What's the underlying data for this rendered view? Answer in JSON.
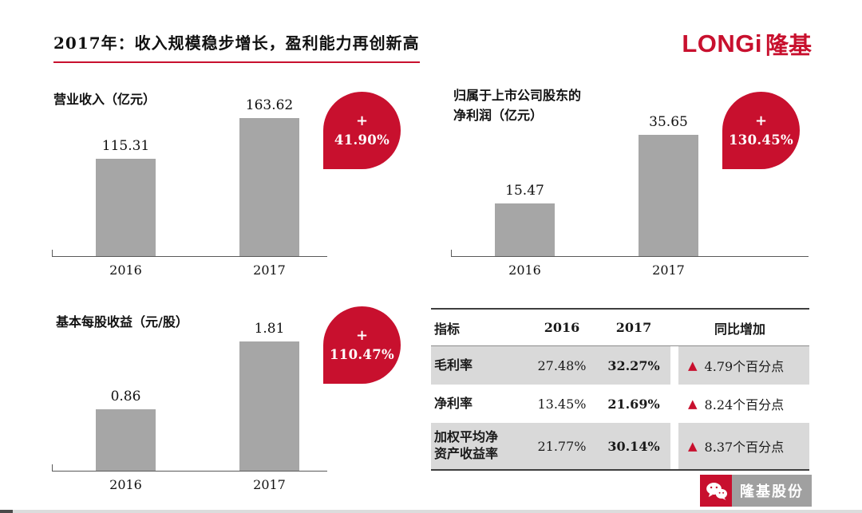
{
  "header": {
    "title": "2017年：收入规模稳步增长，盈利能力再创新高",
    "logo_latin": "LONGi",
    "logo_cn": "隆基"
  },
  "colors": {
    "accent_red": "#c8102e",
    "bar_gray": "#a6a6a6",
    "row_shade": "#d9d9d9"
  },
  "chart_data": [
    {
      "type": "bar",
      "title": "营业收入（亿元）",
      "categories": [
        "2016",
        "2017"
      ],
      "values": [
        115.31,
        163.62
      ],
      "labels": [
        "115.31",
        "163.62"
      ],
      "badge_plus": "+",
      "badge_pct": "41.90%",
      "ylim": [
        0,
        170
      ],
      "grid": false,
      "legend": "none"
    },
    {
      "type": "bar",
      "title": "归属于上市公司股东的\n净利润（亿元）",
      "categories": [
        "2016",
        "2017"
      ],
      "values": [
        15.47,
        35.65
      ],
      "labels": [
        "15.47",
        "35.65"
      ],
      "badge_plus": "+",
      "badge_pct": "130.45%",
      "ylim": [
        0,
        40
      ],
      "grid": false,
      "legend": "none"
    },
    {
      "type": "bar",
      "title": "基本每股收益（元/股）",
      "categories": [
        "2016",
        "2017"
      ],
      "values": [
        0.86,
        1.81
      ],
      "labels": [
        "0.86",
        "1.81"
      ],
      "badge_plus": "+",
      "badge_pct": "110.47%",
      "ylim": [
        0,
        2
      ],
      "grid": false,
      "legend": "none"
    },
    {
      "type": "table",
      "headers": [
        "指标",
        "2016",
        "2017",
        "同比增加"
      ],
      "delta_icon": "▲",
      "rows": [
        [
          "毛利率",
          "27.48%",
          "32.27%",
          "4.79个百分点"
        ],
        [
          "净利率",
          "13.45%",
          "21.69%",
          "8.24个百分点"
        ],
        [
          "加权平均净\n资产收益率",
          "21.77%",
          "30.14%",
          "8.37个百分点"
        ]
      ]
    }
  ],
  "watermark": {
    "brand": "隆基股份"
  }
}
